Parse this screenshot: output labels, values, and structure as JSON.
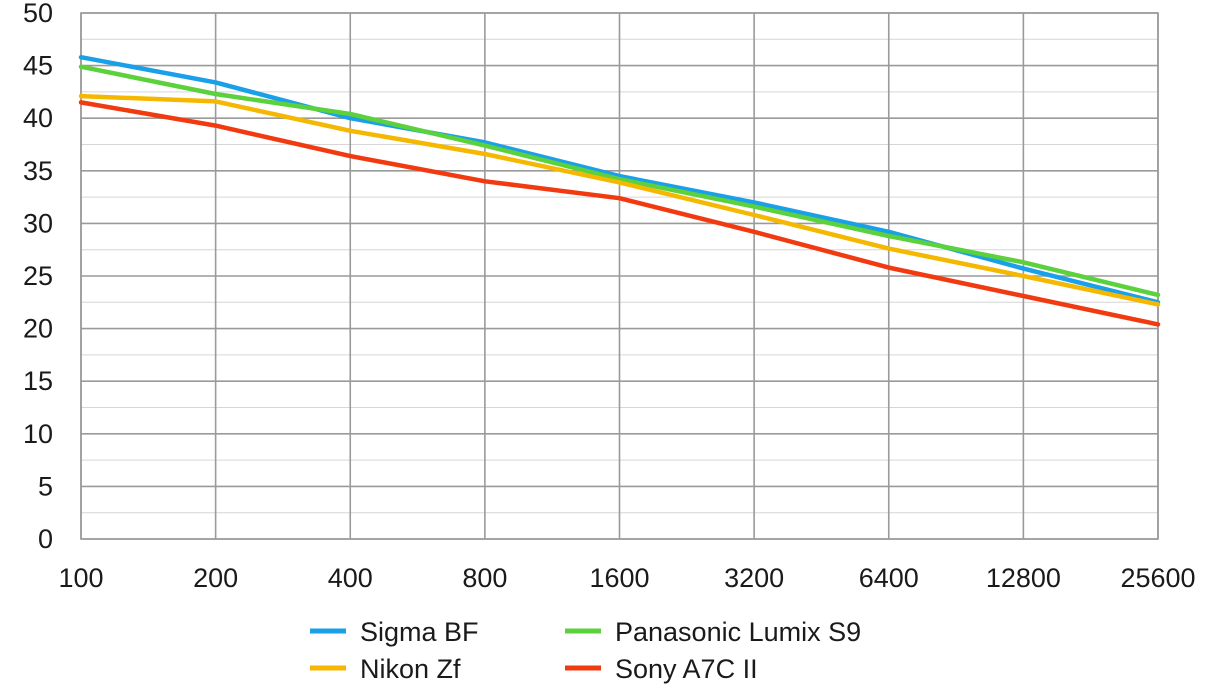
{
  "chart_data": {
    "type": "line",
    "title": "",
    "xlabel": "",
    "ylabel": "",
    "x_scale": "log2",
    "categories": [
      "100",
      "200",
      "400",
      "800",
      "1600",
      "3200",
      "6400",
      "12800",
      "25600"
    ],
    "ylim": [
      0,
      50
    ],
    "y_ticks": [
      "0",
      "5",
      "10",
      "15",
      "20",
      "25",
      "30",
      "35",
      "40",
      "45",
      "50"
    ],
    "grid": true,
    "legend_position": "bottom",
    "series": [
      {
        "name": "Sigma BF",
        "color": "#1aa0e8",
        "values": [
          45.8,
          43.4,
          40.0,
          37.7,
          34.5,
          32.0,
          29.2,
          25.7,
          22.5
        ]
      },
      {
        "name": "Panasonic Lumix S9",
        "color": "#5bd13c",
        "values": [
          44.9,
          42.3,
          40.4,
          37.4,
          34.2,
          31.6,
          28.8,
          26.3,
          23.2
        ]
      },
      {
        "name": "Nikon Zf",
        "color": "#f5b800",
        "values": [
          42.1,
          41.6,
          38.8,
          36.6,
          33.9,
          30.8,
          27.6,
          25.0,
          22.3
        ]
      },
      {
        "name": "Sony A7C II",
        "color": "#f23a10",
        "values": [
          41.5,
          39.3,
          36.4,
          34.0,
          32.4,
          29.2,
          25.8,
          23.1,
          20.4
        ]
      }
    ]
  }
}
